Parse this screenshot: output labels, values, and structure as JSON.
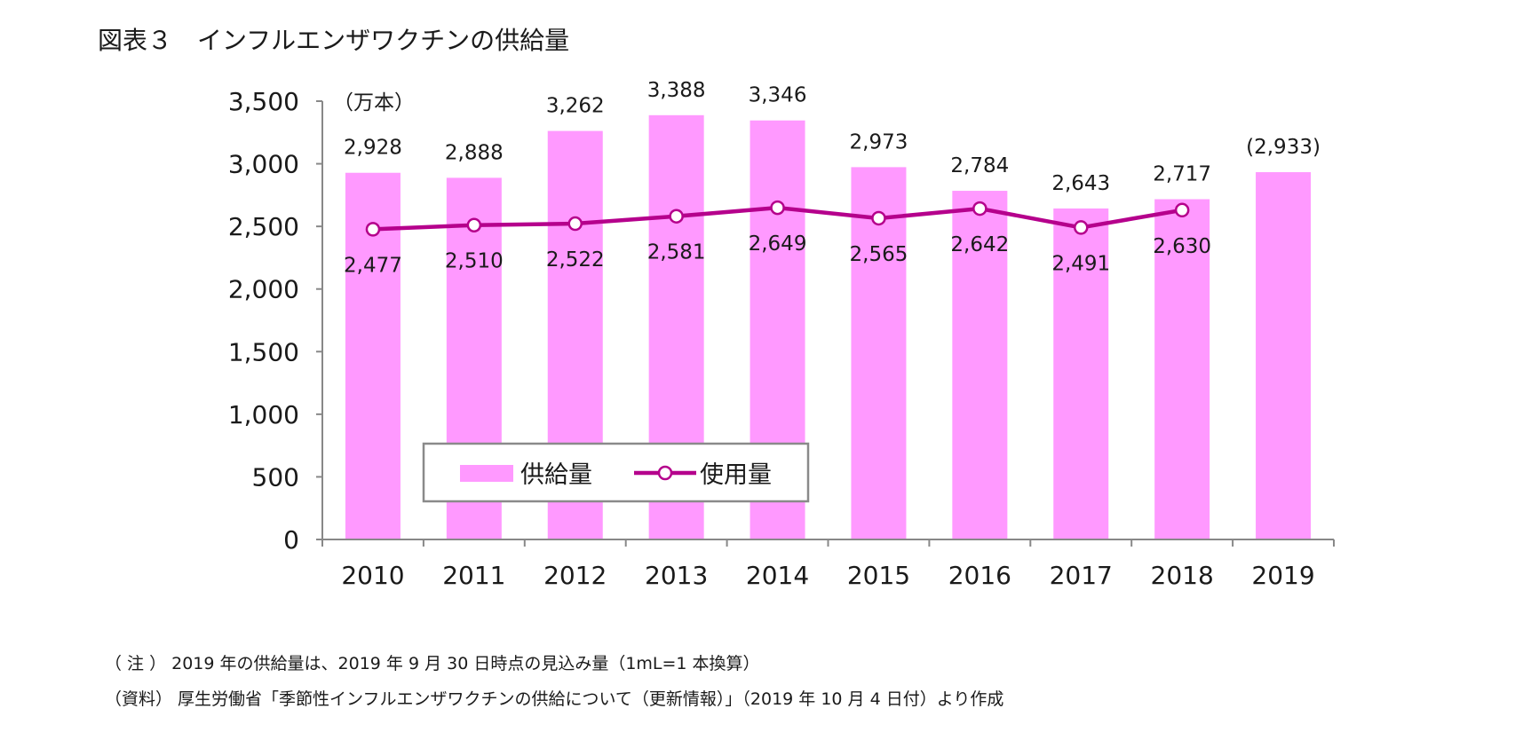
{
  "title": "図表３　インフルエンザワクチンの供給量",
  "chart_data": {
    "type": "bar",
    "categories": [
      "2010",
      "2011",
      "2012",
      "2013",
      "2014",
      "2015",
      "2016",
      "2017",
      "2018",
      "2019"
    ],
    "unit_label": "（万本）",
    "ylim": [
      0,
      3500
    ],
    "yticks": [
      0,
      500,
      1000,
      1500,
      2000,
      2500,
      3000,
      3500
    ],
    "ytick_labels": [
      "0",
      "500",
      "1,000",
      "1,500",
      "2,000",
      "2,500",
      "3,000",
      "3,500"
    ],
    "grid": false,
    "legend_position": "bottom-center inside plot",
    "series": [
      {
        "name": "供給量",
        "type": "bar",
        "color": "#ff99ff",
        "values": [
          2928,
          2888,
          3262,
          3388,
          3346,
          2973,
          2784,
          2643,
          2717,
          2933
        ],
        "labels": [
          "2,928",
          "2,888",
          "3,262",
          "3,388",
          "3,346",
          "2,973",
          "2,784",
          "2,643",
          "2,717",
          "(2,933)"
        ]
      },
      {
        "name": "使用量",
        "type": "line",
        "color": "#b5008c",
        "values": [
          2477,
          2510,
          2522,
          2581,
          2649,
          2565,
          2642,
          2491,
          2630,
          null
        ],
        "labels": [
          "2,477",
          "2,510",
          "2,522",
          "2,581",
          "2,649",
          "2,565",
          "2,642",
          "2,491",
          "2,630",
          ""
        ]
      }
    ]
  },
  "notes": {
    "note": "（ 注 ） 2019 年の供給量は、2019 年 9 月 30 日時点の見込み量（1mL=1 本換算）",
    "source": "（資料） 厚生労働省「季節性インフルエンザワクチンの供給について（更新情報）」（2019 年 10 月 4 日付）より作成"
  }
}
